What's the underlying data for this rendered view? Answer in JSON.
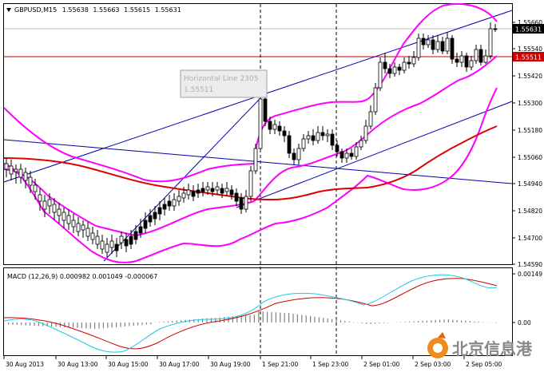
{
  "header": {
    "symbol": "GBPUSD,M15",
    "open": "1.55638",
    "high": "1.55663",
    "low": "1.55615",
    "close": "1.55631"
  },
  "price_axis": {
    "ticks": [
      "1.55660",
      "1.55540",
      "1.55420",
      "1.55300",
      "1.55180",
      "1.55060",
      "1.54940",
      "1.54820",
      "1.54700",
      "1.54590"
    ],
    "current_price": "1.55631",
    "hline_price": "1.55511"
  },
  "tooltip": {
    "line1": "Horizontal Line 2305",
    "line2": "1.55511"
  },
  "macd": {
    "label": "MACD (12,26,9) 0.000982 0.001049 -0.000067",
    "ticks": [
      "0.00149",
      "0.00"
    ]
  },
  "time_axis": {
    "labels": [
      "30 Aug 2013",
      "30 Aug 13:00",
      "30 Aug 15:00",
      "30 Aug 17:00",
      "30 Aug 19:00",
      "1 Sep 21:00",
      "1 Sep 23:00",
      "2 Sep 01:00",
      "2 Sep 03:00",
      "2 Sep 05:00"
    ]
  },
  "watermark": {
    "text": "北京信息港"
  },
  "colors": {
    "up_down_candle": "#000000",
    "bollinger": "#ff00ff",
    "moving_average": "#dd0000",
    "trend_lines": "#0000aa",
    "horizontal_line": "#cc0000",
    "macd_signal": "#cc0000",
    "macd_main": "#1ec8e8",
    "histogram": "#808080"
  }
}
